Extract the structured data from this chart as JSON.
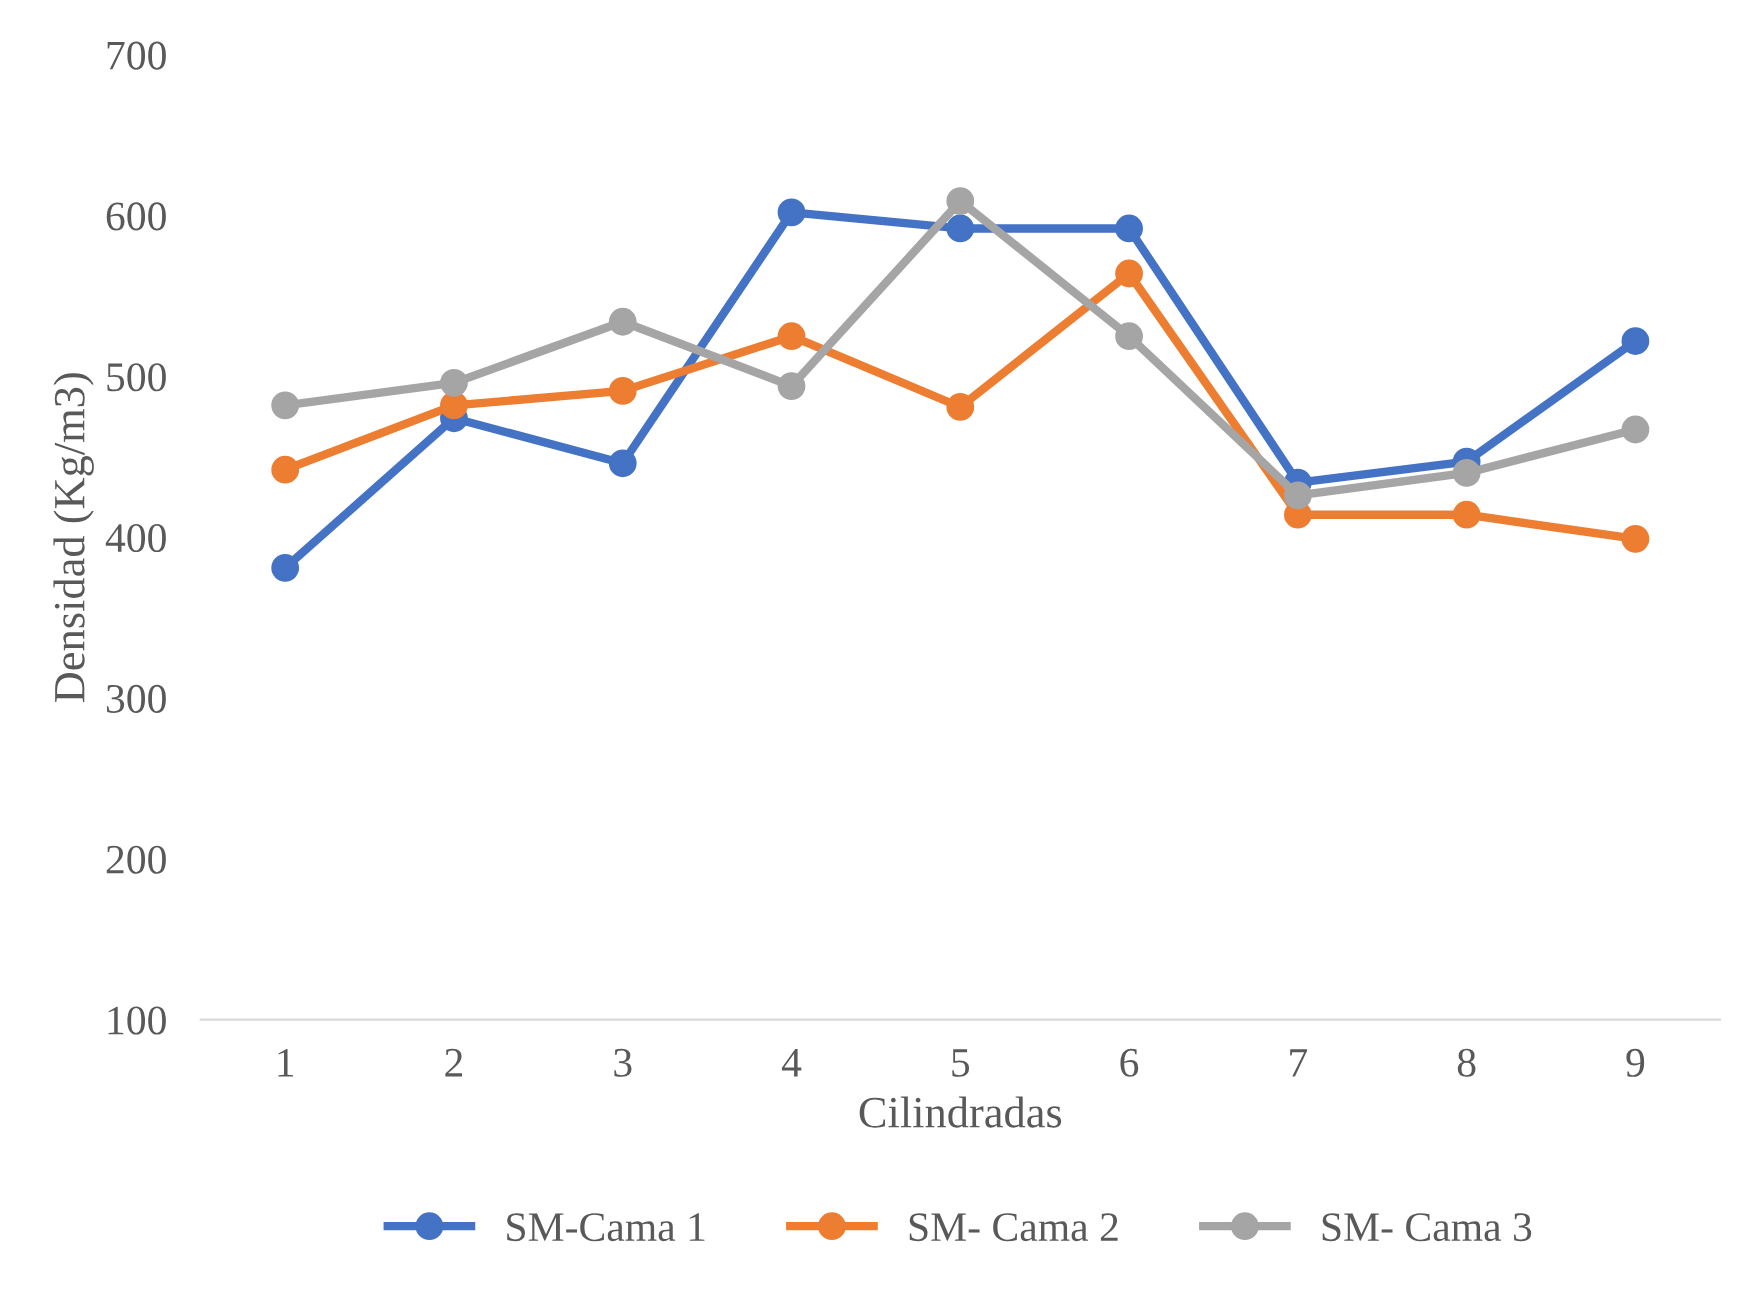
{
  "chart_data": {
    "type": "line",
    "xlabel": "Cilindradas",
    "ylabel": "Densidad (Kg/m3)",
    "categories": [
      "1",
      "2",
      "3",
      "4",
      "5",
      "6",
      "7",
      "8",
      "9"
    ],
    "series": [
      {
        "name": "SM-Cama 1",
        "color": "#4472c4",
        "values": [
          381,
          474,
          446,
          602,
          592,
          592,
          434,
          447,
          522
        ]
      },
      {
        "name": "SM- Cama 2",
        "color": "#ed7d31",
        "values": [
          442,
          482,
          491,
          525,
          481,
          564,
          414,
          414,
          399
        ]
      },
      {
        "name": "SM- Cama 3",
        "color": "#a5a5a5",
        "values": [
          482,
          496,
          534,
          494,
          609,
          525,
          426,
          440,
          467
        ]
      }
    ],
    "ylim": [
      100,
      700
    ],
    "yticks": [
      100,
      200,
      300,
      400,
      500,
      600,
      700
    ],
    "grid": false,
    "legend": "bottom",
    "marker": "circle",
    "line_style": "solid"
  }
}
